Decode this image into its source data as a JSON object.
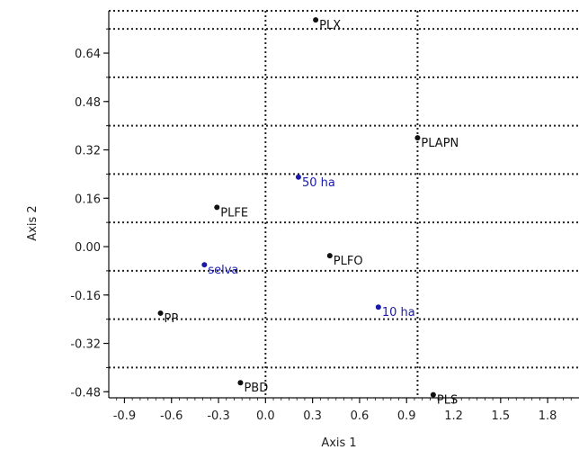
{
  "chart_data": {
    "type": "scatter",
    "xlabel": "Axis 1",
    "ylabel": "Axis 2",
    "xlim": [
      -1.0,
      2.0
    ],
    "ylim": [
      -0.5,
      0.78
    ],
    "x_ticks": [
      "-0.9",
      "-0.6",
      "-0.3",
      "0.0",
      "0.3",
      "0.6",
      "0.9",
      "1.2",
      "1.5",
      "1.8"
    ],
    "x_tick_values": [
      -0.9,
      -0.6,
      -0.3,
      0.0,
      0.3,
      0.6,
      0.9,
      1.2,
      1.5,
      1.8
    ],
    "y_ticks": [
      "0.64",
      "0.48",
      "0.32",
      "0.16",
      "0.00",
      "-0.16",
      "-0.32",
      "-0.48"
    ],
    "y_tick_values": [
      0.64,
      0.48,
      0.32,
      0.16,
      0.0,
      -0.16,
      -0.32,
      -0.48
    ],
    "grid": "dotted horizontal lines; dotted vertical reference lines at x=0 and x=0.97",
    "reference_lines_x": [
      0.0,
      0.97
    ],
    "colors": {
      "black_series": "#111111",
      "blue_series": "#1a1aaa"
    },
    "points": [
      {
        "label": "PLX",
        "x": 0.32,
        "y": 0.75,
        "color": "black"
      },
      {
        "label": "PLAPN",
        "x": 0.97,
        "y": 0.36,
        "color": "black"
      },
      {
        "label": "50 ha",
        "x": 0.21,
        "y": 0.23,
        "color": "blue"
      },
      {
        "label": "PLFE",
        "x": -0.31,
        "y": 0.13,
        "color": "black"
      },
      {
        "label": "PLFO",
        "x": 0.41,
        "y": -0.03,
        "color": "black"
      },
      {
        "label": "selva",
        "x": -0.39,
        "y": -0.06,
        "color": "blue"
      },
      {
        "label": "10 ha",
        "x": 0.72,
        "y": -0.2,
        "color": "blue"
      },
      {
        "label": "PP",
        "x": -0.67,
        "y": -0.22,
        "color": "black"
      },
      {
        "label": "PBD",
        "x": -0.16,
        "y": -0.45,
        "color": "black"
      },
      {
        "label": "PLS",
        "x": 1.07,
        "y": -0.49,
        "color": "black"
      }
    ]
  }
}
